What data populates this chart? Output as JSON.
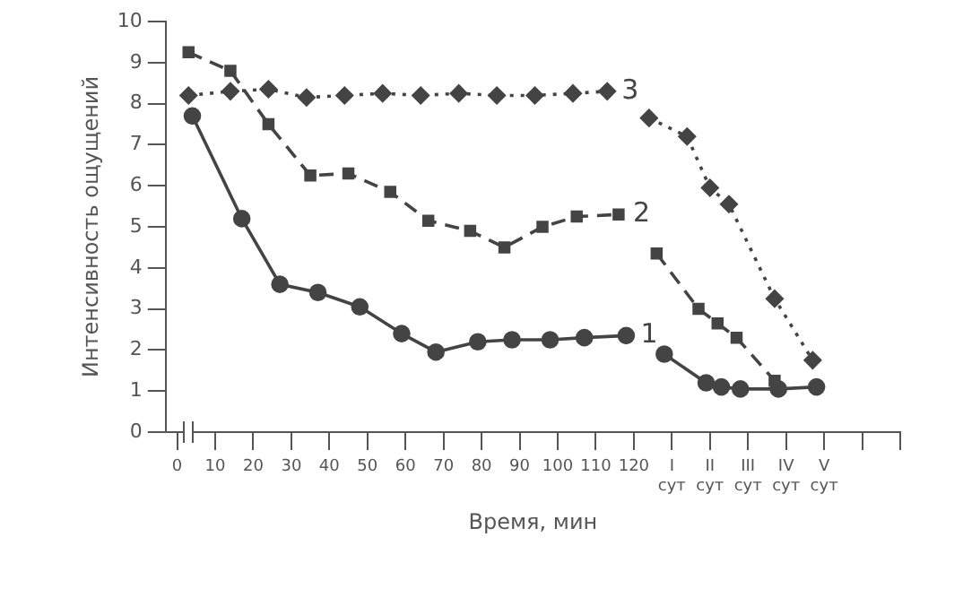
{
  "chart_data": {
    "type": "line",
    "xlabel": "Время, мин",
    "ylabel": "Интенсивность ощущений",
    "xlim": [
      -3,
      190
    ],
    "ylim": [
      0,
      10
    ],
    "yticks": [
      0,
      1,
      2,
      3,
      4,
      5,
      6,
      7,
      8,
      9,
      10
    ],
    "xticks": [
      0,
      10,
      20,
      30,
      40,
      50,
      60,
      70,
      80,
      90,
      100,
      110,
      120,
      {
        "value": 130,
        "label": "I сут"
      },
      {
        "value": 140,
        "label": "II сут"
      },
      {
        "value": 150,
        "label": "III сут"
      },
      {
        "value": 160,
        "label": "IV сут"
      },
      {
        "value": 170,
        "label": "V сут"
      },
      {
        "value": 180,
        "label": null
      },
      {
        "value": 190,
        "label": null
      }
    ],
    "grid": false,
    "legend": false,
    "series": [
      {
        "type": "line",
        "name": "1",
        "color": "#444444",
        "marker": "circle",
        "line_style": "solid",
        "x": [
          4,
          17,
          27,
          37,
          48,
          59,
          68,
          79,
          88,
          98,
          107,
          118,
          122,
          128,
          139,
          143,
          148,
          158,
          168
        ],
        "values": [
          7.7,
          5.2,
          3.6,
          3.4,
          3.05,
          2.4,
          1.95,
          2.2,
          2.25,
          2.25,
          2.3,
          2.35,
          null,
          1.9,
          1.2,
          1.1,
          1.05,
          1.05,
          1.1
        ]
      },
      {
        "type": "line",
        "name": "2",
        "color": "#444444",
        "marker": "square",
        "line_style": "dashed",
        "x": [
          3,
          14,
          24,
          35,
          45,
          56,
          66,
          77,
          86,
          96,
          105,
          116,
          121,
          126,
          137,
          142,
          147,
          157
        ],
        "values": [
          9.25,
          8.8,
          7.5,
          6.25,
          6.3,
          5.85,
          5.15,
          4.9,
          4.5,
          5.0,
          5.25,
          5.3,
          null,
          4.35,
          3.0,
          2.65,
          2.3,
          1.25
        ]
      },
      {
        "type": "line",
        "name": "3",
        "color": "#444444",
        "marker": "diamond",
        "line_style": "dotted",
        "x": [
          3,
          14,
          24,
          34,
          44,
          54,
          64,
          74,
          84,
          94,
          104,
          113,
          119,
          124,
          134,
          140,
          145,
          157,
          167
        ],
        "values": [
          8.2,
          8.3,
          8.35,
          8.15,
          8.2,
          8.25,
          8.2,
          8.25,
          8.2,
          8.2,
          8.25,
          8.3,
          null,
          7.65,
          7.2,
          5.95,
          5.55,
          3.25,
          1.75
        ]
      }
    ]
  }
}
